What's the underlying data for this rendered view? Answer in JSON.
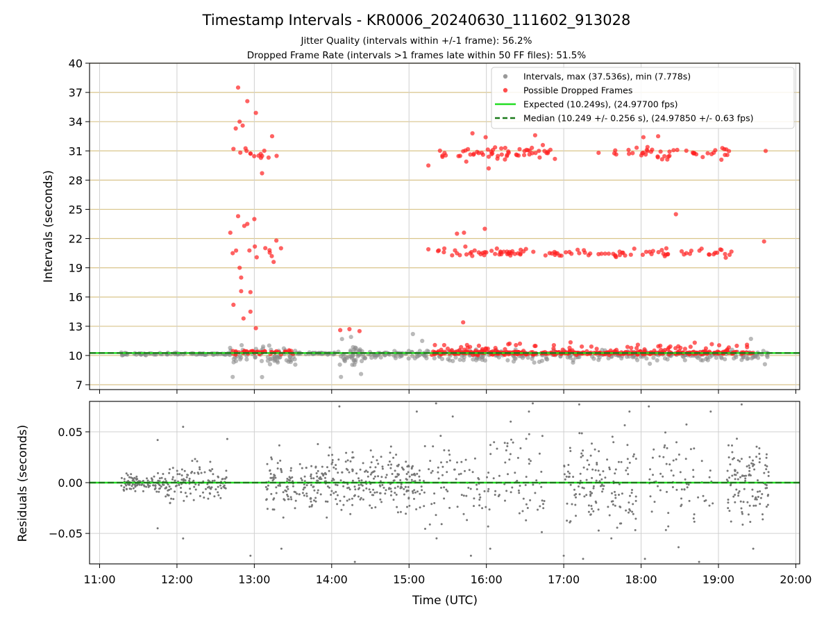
{
  "chart_data": [
    {
      "type": "scatter",
      "title": "Timestamp Intervals - KR0006_20240630_111602_913028",
      "subtitle_lines": [
        "Jitter Quality (intervals within +/-1 frame): 56.2%",
        "Dropped Frame Rate (intervals >1 frames late within 50 FF files): 51.5%"
      ],
      "xlabel": "",
      "ylabel": "Intervals (seconds)",
      "x_domain_hours": [
        10.87,
        20.05
      ],
      "ylim": [
        6.5,
        40
      ],
      "yticks": [
        7,
        10,
        13,
        16,
        19,
        22,
        25,
        28,
        31,
        34,
        37,
        40
      ],
      "ygrid_color": "#d9c48a",
      "xgrid": true,
      "legend_position": "top-right",
      "expected_interval": 10.249,
      "median_interval": 10.249,
      "colors": {
        "intervals": "#8c8c8c",
        "dropped": "#ff2020",
        "expected": "#22dd22",
        "median": "#1a7a1a"
      },
      "legend": [
        {
          "label": "Intervals, max (37.536s), min (7.778s)",
          "kind": "dot",
          "color": "#999999"
        },
        {
          "label": "Possible Dropped Frames",
          "kind": "dot",
          "color": "#ff4d4d"
        },
        {
          "label": "Expected (10.249s), (24.97700 fps)",
          "kind": "line",
          "color": "#22dd22"
        },
        {
          "label": "Median (10.249 +/- 0.256 s), (24.97850 +/- 0.63 fps)",
          "kind": "dash",
          "color": "#1a7a1a"
        }
      ],
      "series": [
        {
          "name": "Intervals, max (37.536s), min (7.778s)",
          "clusters": [
            {
              "t0": 11.28,
              "t1": 12.68,
              "y": 10.15,
              "spread": 0.12,
              "count": 90
            },
            {
              "t0": 12.68,
              "t1": 13.55,
              "y": 10.0,
              "spread": 0.9,
              "count": 70
            },
            {
              "t0": 13.55,
              "t1": 14.05,
              "y": 10.2,
              "spread": 0.1,
              "count": 40
            },
            {
              "t0": 14.05,
              "t1": 14.45,
              "y": 10.0,
              "spread": 1.2,
              "count": 45
            },
            {
              "t0": 14.45,
              "t1": 15.2,
              "y": 10.1,
              "spread": 0.35,
              "count": 55
            },
            {
              "t0": 15.2,
              "t1": 19.65,
              "y": 10.0,
              "spread": 0.6,
              "count": 260
            }
          ],
          "points": [
            {
              "x": 12.72,
              "y": 7.8
            },
            {
              "x": 13.1,
              "y": 7.78
            },
            {
              "x": 14.12,
              "y": 7.8
            },
            {
              "x": 14.38,
              "y": 8.1
            },
            {
              "x": 15.05,
              "y": 12.2
            },
            {
              "x": 15.17,
              "y": 11.5
            },
            {
              "x": 14.25,
              "y": 11.9
            },
            {
              "x": 19.42,
              "y": 11.7
            },
            {
              "x": 19.6,
              "y": 9.1
            }
          ]
        },
        {
          "name": "Possible Dropped Frames",
          "clusters": [
            {
              "t0": 12.72,
              "t1": 13.5,
              "y": 10.3,
              "spread": 0.2,
              "count": 45
            },
            {
              "t0": 15.28,
              "t1": 19.45,
              "y": 10.25,
              "spread": 0.15,
              "count": 330
            },
            {
              "t0": 15.28,
              "t1": 19.45,
              "y": 10.8,
              "spread": 0.5,
              "count": 80
            },
            {
              "t0": 15.3,
              "t1": 16.6,
              "y": 20.6,
              "spread": 0.5,
              "count": 40
            },
            {
              "t0": 16.3,
              "t1": 19.3,
              "y": 20.5,
              "spread": 0.4,
              "count": 65
            },
            {
              "t0": 15.3,
              "t1": 16.9,
              "y": 30.8,
              "spread": 0.6,
              "count": 55
            },
            {
              "t0": 17.65,
              "t1": 19.25,
              "y": 30.8,
              "spread": 0.6,
              "count": 45
            },
            {
              "t0": 12.76,
              "t1": 13.35,
              "y": 30.6,
              "spread": 0.8,
              "count": 12
            },
            {
              "t0": 12.76,
              "t1": 13.35,
              "y": 20.8,
              "spread": 0.8,
              "count": 10
            }
          ],
          "points": [
            {
              "x": 12.79,
              "y": 37.5
            },
            {
              "x": 12.91,
              "y": 36.1
            },
            {
              "x": 13.02,
              "y": 34.9
            },
            {
              "x": 12.81,
              "y": 34.0
            },
            {
              "x": 12.85,
              "y": 33.6
            },
            {
              "x": 12.76,
              "y": 33.3
            },
            {
              "x": 13.23,
              "y": 32.5
            },
            {
              "x": 12.73,
              "y": 31.2
            },
            {
              "x": 12.9,
              "y": 31.0
            },
            {
              "x": 13.1,
              "y": 28.7
            },
            {
              "x": 12.79,
              "y": 24.3
            },
            {
              "x": 13.0,
              "y": 24.0
            },
            {
              "x": 12.87,
              "y": 23.3
            },
            {
              "x": 12.91,
              "y": 23.5
            },
            {
              "x": 12.69,
              "y": 22.6
            },
            {
              "x": 12.72,
              "y": 20.5
            },
            {
              "x": 12.81,
              "y": 19.0
            },
            {
              "x": 12.83,
              "y": 18.0
            },
            {
              "x": 12.83,
              "y": 16.6
            },
            {
              "x": 12.95,
              "y": 16.5
            },
            {
              "x": 12.73,
              "y": 15.2
            },
            {
              "x": 12.95,
              "y": 14.5
            },
            {
              "x": 12.86,
              "y": 13.8
            },
            {
              "x": 13.02,
              "y": 12.8
            },
            {
              "x": 13.25,
              "y": 19.6
            },
            {
              "x": 14.11,
              "y": 12.6
            },
            {
              "x": 14.23,
              "y": 12.7
            },
            {
              "x": 14.36,
              "y": 12.5
            },
            {
              "x": 15.7,
              "y": 13.4
            },
            {
              "x": 15.74,
              "y": 29.9
            },
            {
              "x": 15.82,
              "y": 32.8
            },
            {
              "x": 15.99,
              "y": 32.4
            },
            {
              "x": 15.25,
              "y": 29.5
            },
            {
              "x": 15.71,
              "y": 22.6
            },
            {
              "x": 15.62,
              "y": 22.5
            },
            {
              "x": 15.98,
              "y": 23.0
            },
            {
              "x": 16.03,
              "y": 29.2
            },
            {
              "x": 16.63,
              "y": 32.6
            },
            {
              "x": 16.73,
              "y": 31.6
            },
            {
              "x": 18.03,
              "y": 32.4
            },
            {
              "x": 18.22,
              "y": 32.5
            },
            {
              "x": 18.45,
              "y": 24.5
            },
            {
              "x": 19.59,
              "y": 21.7
            },
            {
              "x": 19.61,
              "y": 31.0
            },
            {
              "x": 17.45,
              "y": 30.8
            },
            {
              "x": 17.2,
              "y": 20.5
            },
            {
              "x": 17.45,
              "y": 20.4
            },
            {
              "x": 15.45,
              "y": 20.6
            },
            {
              "x": 15.25,
              "y": 20.9
            }
          ]
        }
      ]
    },
    {
      "type": "scatter",
      "title": "",
      "xlabel": "Time (UTC)",
      "ylabel": "Residuals (seconds)",
      "ylim": [
        -0.08,
        0.08
      ],
      "yticks": [
        0.05,
        0.0,
        -0.05
      ],
      "ytick_labels": [
        "0.05",
        "0.00",
        "−0.05"
      ],
      "x_domain_hours": [
        10.87,
        20.05
      ],
      "xticks": [
        "11:00",
        "12:00",
        "13:00",
        "14:00",
        "15:00",
        "16:00",
        "17:00",
        "18:00",
        "19:00",
        "20:00"
      ],
      "xtick_hours": [
        11,
        12,
        13,
        14,
        15,
        16,
        17,
        18,
        19,
        20
      ],
      "grid": true,
      "zero_line_colors": [
        "#22dd22",
        "#1a7a1a"
      ],
      "point_color": "#777777",
      "series": [
        {
          "name": "",
          "clusters": [
            {
              "t0": 11.28,
              "t1": 11.85,
              "y": 0.0,
              "spread": 0.008,
              "count": 110
            },
            {
              "t0": 11.85,
              "t1": 12.65,
              "y": 0.0,
              "spread": 0.018,
              "count": 130
            },
            {
              "t0": 13.15,
              "t1": 14.0,
              "y": 0.0,
              "spread": 0.03,
              "count": 150
            },
            {
              "t0": 14.0,
              "t1": 15.2,
              "y": 0.0,
              "spread": 0.028,
              "count": 220
            },
            {
              "t0": 15.2,
              "t1": 16.0,
              "y": 0.0,
              "spread": 0.045,
              "count": 70
            },
            {
              "t0": 16.0,
              "t1": 16.75,
              "y": 0.0,
              "spread": 0.05,
              "count": 70
            },
            {
              "t0": 17.0,
              "t1": 17.95,
              "y": 0.0,
              "spread": 0.045,
              "count": 140
            },
            {
              "t0": 18.1,
              "t1": 18.95,
              "y": 0.0,
              "spread": 0.05,
              "count": 70
            },
            {
              "t0": 19.1,
              "t1": 19.65,
              "y": 0.0,
              "spread": 0.035,
              "count": 110
            }
          ],
          "points": [
            {
              "x": 11.75,
              "y": 0.042
            },
            {
              "x": 12.08,
              "y": 0.055
            },
            {
              "x": 12.08,
              "y": -0.055
            },
            {
              "x": 11.75,
              "y": -0.045
            },
            {
              "x": 12.65,
              "y": 0.043
            },
            {
              "x": 12.95,
              "y": -0.072
            },
            {
              "x": 14.1,
              "y": 0.075
            },
            {
              "x": 14.3,
              "y": -0.078
            },
            {
              "x": 13.35,
              "y": -0.065
            },
            {
              "x": 15.1,
              "y": 0.07
            },
            {
              "x": 15.35,
              "y": 0.078
            },
            {
              "x": 15.8,
              "y": -0.072
            },
            {
              "x": 16.55,
              "y": 0.07
            },
            {
              "x": 16.6,
              "y": 0.078
            },
            {
              "x": 16.05,
              "y": -0.065
            },
            {
              "x": 17.0,
              "y": -0.072
            },
            {
              "x": 17.2,
              "y": 0.077
            },
            {
              "x": 17.25,
              "y": -0.075
            },
            {
              "x": 17.85,
              "y": 0.07
            },
            {
              "x": 18.1,
              "y": 0.075
            },
            {
              "x": 18.05,
              "y": -0.075
            },
            {
              "x": 18.75,
              "y": -0.078
            },
            {
              "x": 18.9,
              "y": 0.07
            },
            {
              "x": 19.3,
              "y": 0.077
            },
            {
              "x": 19.45,
              "y": -0.065
            }
          ]
        }
      ]
    }
  ]
}
